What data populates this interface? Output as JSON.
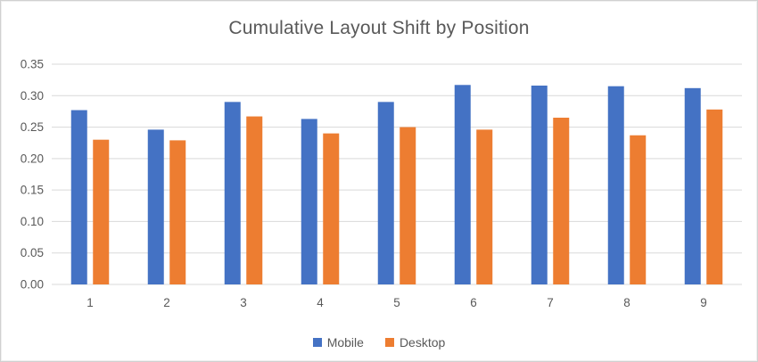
{
  "window": {
    "background": "#ffffff",
    "border_color": "#d1d1d1"
  },
  "chart_data": {
    "type": "bar",
    "title": "Cumulative Layout Shift by Position",
    "categories": [
      "1",
      "2",
      "3",
      "4",
      "5",
      "6",
      "7",
      "8",
      "9"
    ],
    "series": [
      {
        "name": "Mobile",
        "color": "#4472C4",
        "values": [
          0.277,
          0.246,
          0.29,
          0.263,
          0.29,
          0.317,
          0.316,
          0.315,
          0.312
        ]
      },
      {
        "name": "Desktop",
        "color": "#ED7D31",
        "values": [
          0.23,
          0.229,
          0.267,
          0.24,
          0.25,
          0.246,
          0.265,
          0.237,
          0.278
        ]
      }
    ],
    "xlabel": "",
    "ylabel": "",
    "ylim": [
      0,
      0.35
    ],
    "ytick_step": 0.05,
    "ytick_labels": [
      "0.00",
      "0.05",
      "0.10",
      "0.15",
      "0.20",
      "0.25",
      "0.30",
      "0.35"
    ],
    "grid": true,
    "grid_color": "#d9d9d9",
    "axis_line_color": "#d9d9d9",
    "text_color": "#595959",
    "legend_position": "bottom"
  }
}
